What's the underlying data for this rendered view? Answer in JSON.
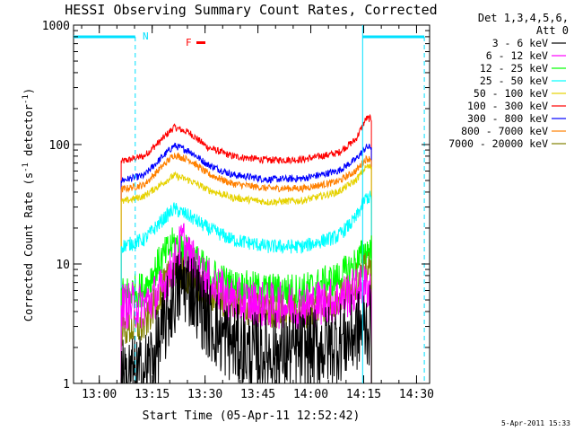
{
  "chart_data": {
    "type": "line",
    "title": "HESSI Observing Summary Count Rates, Corrected",
    "xlabel": "Start Time (05-Apr-11 12:52:42)",
    "ylabel_main": "Corrected Count Rate (s",
    "ylabel_sup1": "-1",
    "ylabel_mid": " detector",
    "ylabel_sup2": "-1",
    "ylabel_end": ")",
    "yscale": "log",
    "ylim": [
      1,
      1000
    ],
    "xlim_minutes_after_1252": [
      0,
      101
    ],
    "xticks": [
      {
        "label": "13:00",
        "t": 7.3
      },
      {
        "label": "13:15",
        "t": 22.3
      },
      {
        "label": "13:30",
        "t": 37.3
      },
      {
        "label": "13:45",
        "t": 52.3
      },
      {
        "label": "14:00",
        "t": 67.3
      },
      {
        "label": "14:15",
        "t": 82.3
      },
      {
        "label": "14:30",
        "t": 97.3
      }
    ],
    "yticks": [
      {
        "label": "1",
        "v": 1
      },
      {
        "label": "10",
        "v": 10
      },
      {
        "label": "100",
        "v": 100
      },
      {
        "label": "1000",
        "v": 1000
      }
    ],
    "legend": {
      "placement": "right",
      "header": [
        "Det 1,3,4,5,6,",
        "Att 0"
      ],
      "entries": [
        {
          "label": "3 - 6 keV",
          "color": "#000000"
        },
        {
          "label": "6 - 12 keV",
          "color": "#ff00ff"
        },
        {
          "label": "12 - 25 keV",
          "color": "#00ff00"
        },
        {
          "label": "25 - 50 keV",
          "color": "#00ffff"
        },
        {
          "label": "50 - 100 keV",
          "color": "#e6d200"
        },
        {
          "label": "100 - 300 keV",
          "color": "#ff0000"
        },
        {
          "label": "300 - 800 keV",
          "color": "#0000ff"
        },
        {
          "label": "800 - 7000 keV",
          "color": "#ff8000"
        },
        {
          "label": "7000 - 20000 keV",
          "color": "#808000"
        }
      ]
    },
    "annotations": {
      "night_label": "N",
      "flare_label": "F",
      "flare_color": "#ff0000",
      "night_color": "#00e0ff"
    },
    "data_interval": {
      "start_t": 13.5,
      "end_t": 84.5
    },
    "night_bars": [
      {
        "start_t": 0,
        "end_t": 17.5
      },
      {
        "start_t": 82.0,
        "end_t": 99.5
      }
    ],
    "night_dashed_lines_t": [
      17.5,
      99.5
    ],
    "night_solid_lines_t": [
      82.0
    ],
    "series": [
      {
        "name": "100 - 300 keV",
        "color": "#ff0000",
        "noise": 0.03,
        "x": [
          13.5,
          20,
          25,
          28.5,
          33,
          38,
          45,
          55,
          65,
          75,
          80,
          83,
          84.5
        ],
        "y": [
          72,
          80,
          110,
          140,
          125,
          95,
          80,
          74,
          75,
          85,
          110,
          165,
          165
        ]
      },
      {
        "name": "300 - 800 keV",
        "color": "#0000ff",
        "noise": 0.03,
        "x": [
          13.5,
          20,
          25,
          28.5,
          33,
          38,
          45,
          55,
          65,
          75,
          80,
          83,
          84.5
        ],
        "y": [
          50,
          55,
          78,
          98,
          88,
          68,
          56,
          51,
          52,
          60,
          75,
          95,
          95
        ]
      },
      {
        "name": "800 - 7000 keV",
        "color": "#ff8000",
        "noise": 0.03,
        "x": [
          13.5,
          20,
          25,
          28.5,
          33,
          38,
          45,
          55,
          65,
          75,
          80,
          83,
          84.5
        ],
        "y": [
          42,
          46,
          65,
          82,
          74,
          57,
          47,
          43,
          43,
          49,
          60,
          76,
          76
        ]
      },
      {
        "name": "50 - 100 keV",
        "color": "#e6d200",
        "noise": 0.03,
        "x": [
          13.5,
          20,
          25,
          28.5,
          33,
          38,
          45,
          55,
          65,
          75,
          80,
          83,
          84.5
        ],
        "y": [
          33,
          37,
          47,
          55,
          50,
          42,
          36,
          33,
          34,
          40,
          50,
          65,
          65
        ]
      },
      {
        "name": "25 - 50 keV",
        "color": "#00ffff",
        "noise": 0.06,
        "x": [
          13.5,
          20,
          25,
          28.5,
          33,
          38,
          45,
          55,
          65,
          75,
          80,
          83,
          84.5
        ],
        "y": [
          14,
          16,
          23,
          29,
          25,
          20,
          16,
          14,
          14,
          17,
          24,
          36,
          36
        ]
      },
      {
        "name": "12 - 25 keV",
        "color": "#00ff00",
        "noise": 0.15,
        "x": [
          13.5,
          20,
          25,
          28.5,
          33,
          38,
          45,
          55,
          65,
          75,
          80,
          83,
          84.5
        ],
        "y": [
          5.6,
          6.2,
          11,
          15,
          12,
          8.5,
          6.5,
          6,
          6,
          7.5,
          10,
          13,
          13
        ]
      },
      {
        "name": "7000 - 20000 keV",
        "color": "#808000",
        "noise": 0.15,
        "x": [
          13.5,
          20,
          25,
          28.5,
          33,
          38,
          45,
          55,
          65,
          75,
          80,
          83,
          84.5
        ],
        "y": [
          2.8,
          3.0,
          6,
          9.5,
          7.5,
          5.5,
          4.5,
          4,
          4,
          5,
          7,
          9,
          9
        ]
      },
      {
        "name": "6 - 12 keV",
        "color": "#ff00ff",
        "noise": 0.2,
        "x": [
          13.5,
          20,
          25,
          28.5,
          31,
          33,
          38,
          45,
          55,
          65,
          75,
          80,
          83,
          84.5
        ],
        "y": [
          4.5,
          4.5,
          6,
          10,
          16,
          11,
          7,
          5,
          4.5,
          4.5,
          5,
          6,
          6.5,
          6.5
        ]
      },
      {
        "name": "3 - 6 keV",
        "color": "#000000",
        "noise": 0.35,
        "x": [
          13.5,
          20,
          24,
          28,
          31,
          34,
          38,
          42,
          50,
          60,
          70,
          78,
          82,
          84.5
        ],
        "y": [
          1.1,
          1.2,
          2.0,
          5,
          7,
          6,
          3.5,
          2.5,
          1.8,
          1.8,
          2.0,
          2.4,
          3.0,
          3.0
        ]
      }
    ]
  },
  "footer": {
    "date_stamp": "5-Apr-2011 15:33"
  }
}
